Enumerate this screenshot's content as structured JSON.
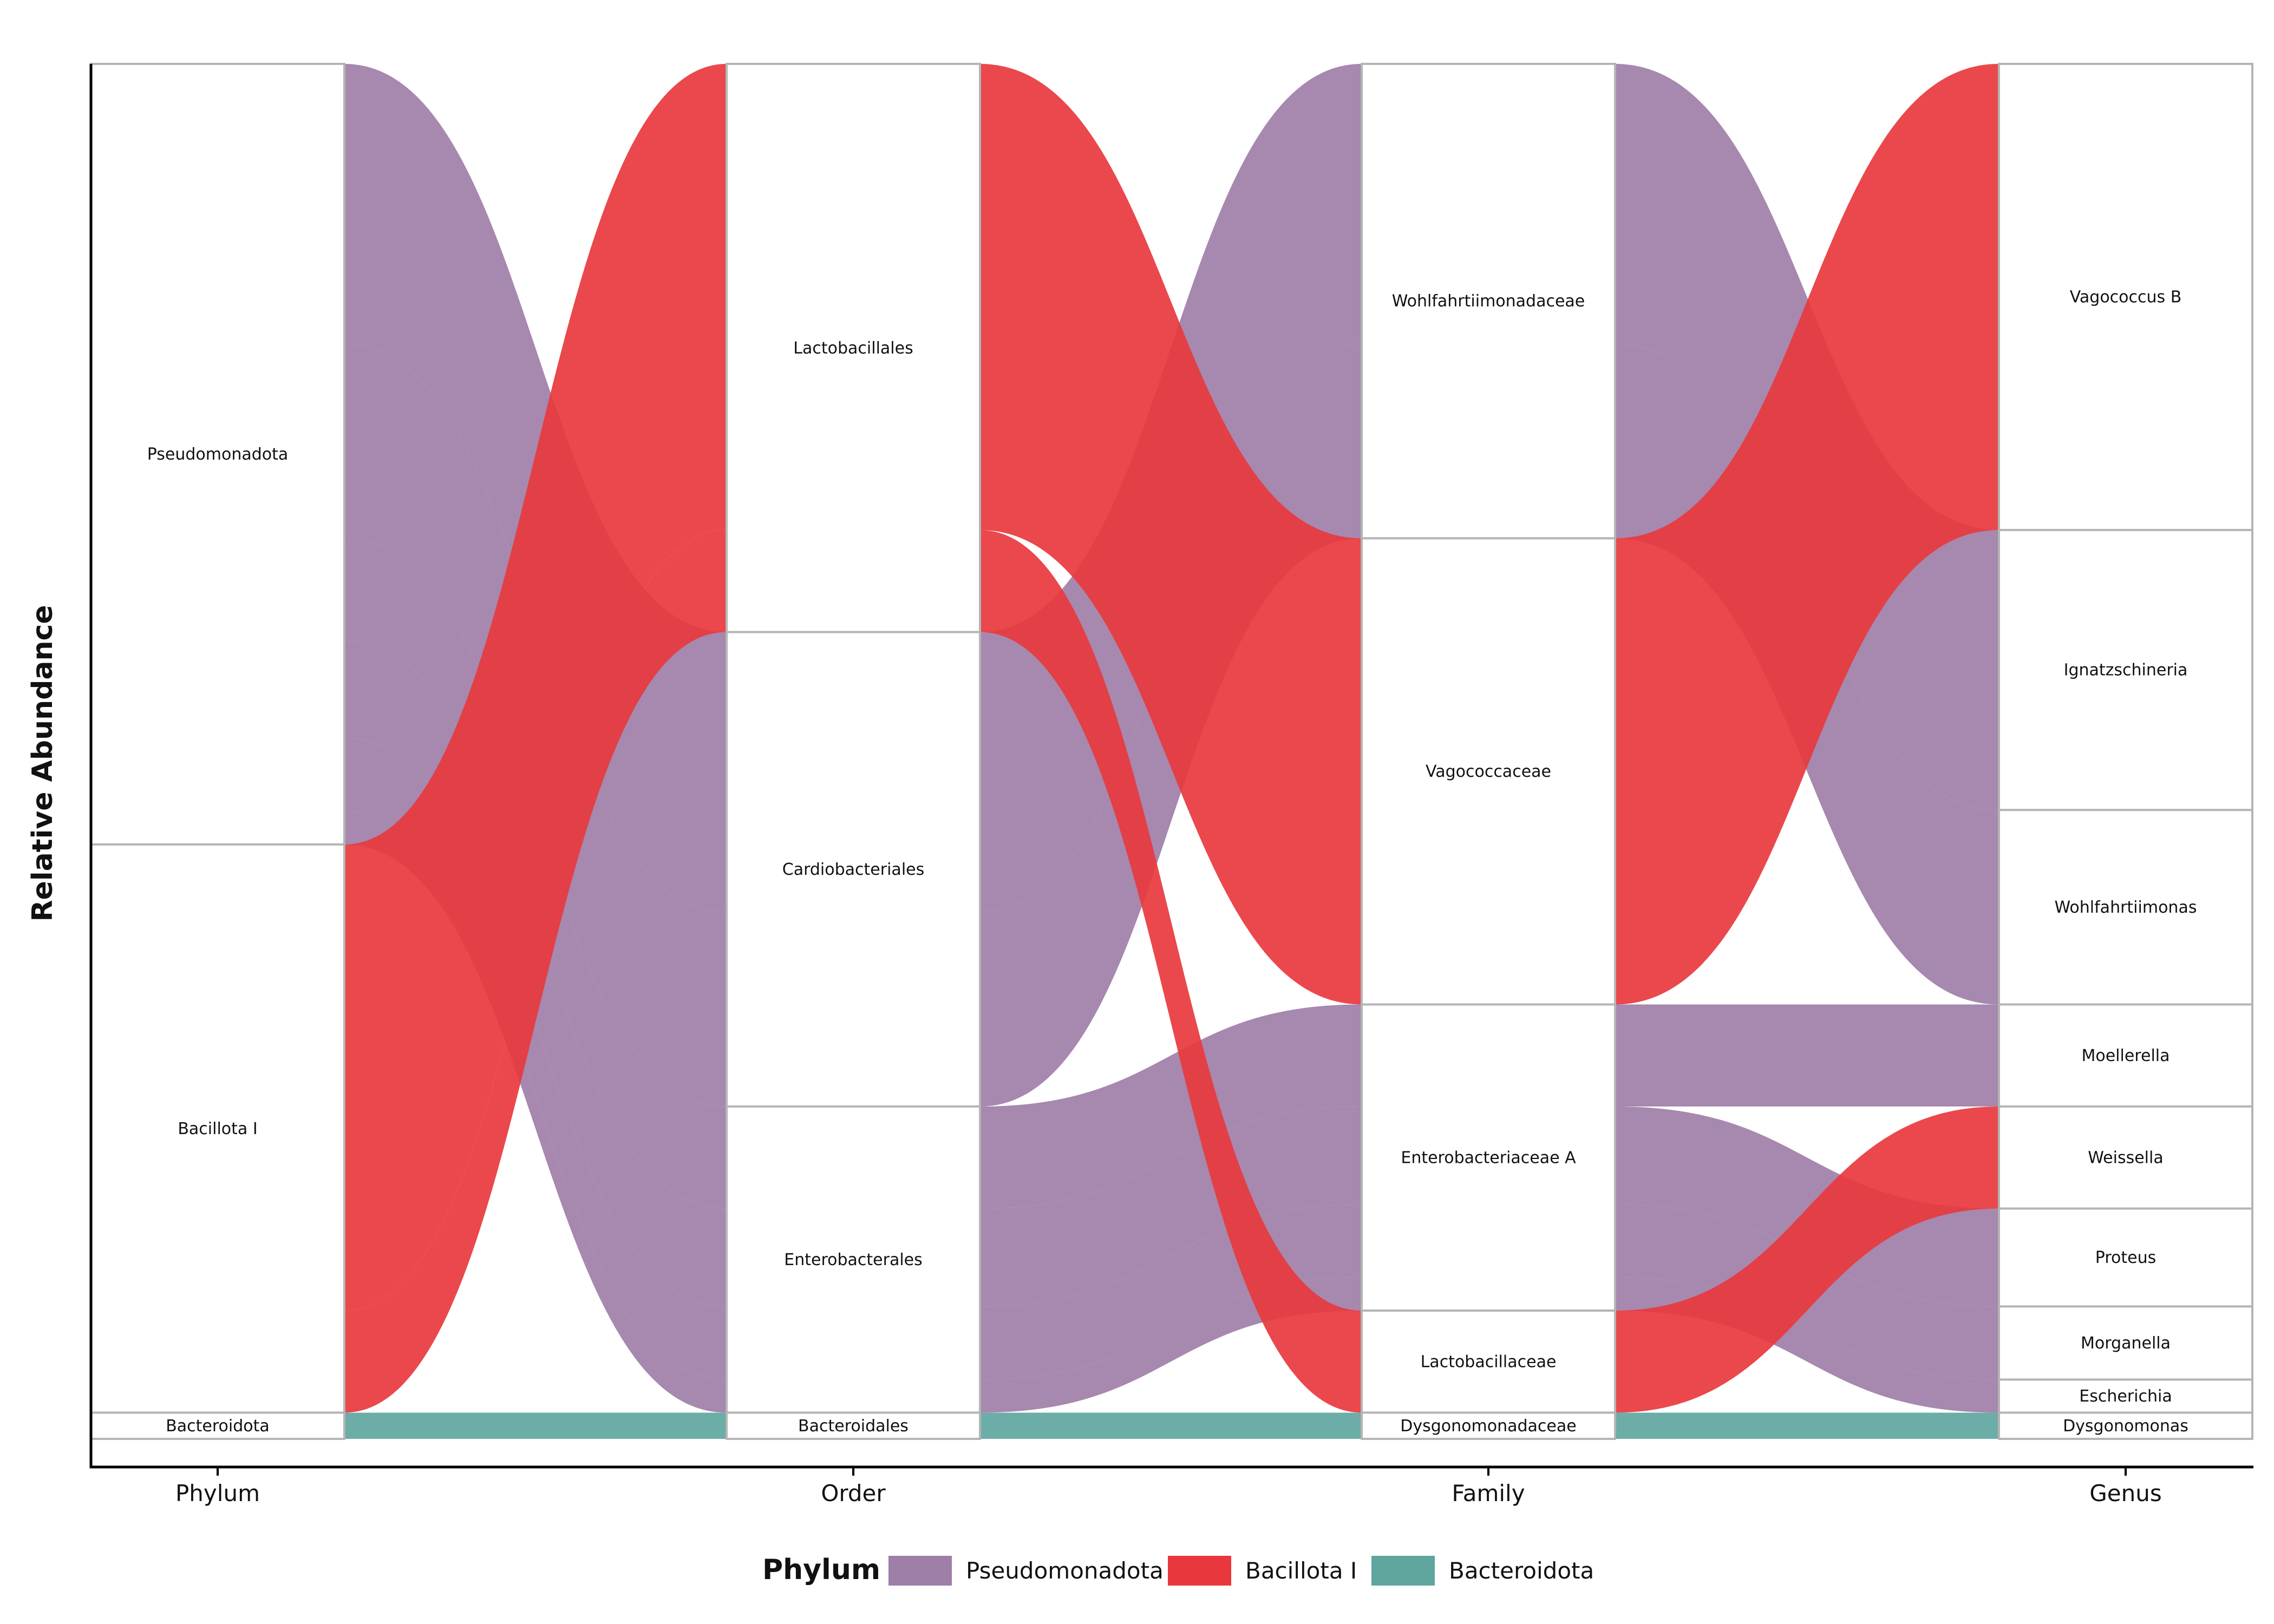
{
  "chart_data": {
    "type": "alluvial",
    "ylabel": "Relative Abundance",
    "axes": [
      "Phylum",
      "Order",
      "Family",
      "Genus"
    ],
    "colors": {
      "Pseudomonadota": "#9f7ea7",
      "Bacillota I": "#e8383d",
      "Bacteroidota": "#5fa69f"
    },
    "legend": {
      "title": "Phylum",
      "position": "bottom",
      "items": [
        "Pseudomonadota",
        "Bacillota I",
        "Bacteroidota"
      ]
    },
    "strata": [
      [
        "Pseudomonadota",
        "Bacillota I",
        "Bacteroidota"
      ],
      [
        "Lactobacillales",
        "Cardiobacteriales",
        "Enterobacterales",
        "Bacteroidales"
      ],
      [
        "Wohlfahrtiimonadaceae",
        "Vagococcaceae",
        "Enterobacteriaceae A",
        "Lactobacillaceae",
        "Dysgonomonadaceae"
      ],
      [
        "Vagococcus B",
        "Ignatzschineria",
        "Wohlfahrtiimonas",
        "Moellerella",
        "Weissella",
        "Proteus",
        "Morganella",
        "Escherichia",
        "Dysgonomonas"
      ]
    ],
    "flows": [
      {
        "phylum": "Pseudomonadota",
        "path": [
          "Pseudomonadota",
          "Cardiobacteriales",
          "Wohlfahrtiimonadaceae",
          "Ignatzschineria"
        ],
        "value": 0.203
      },
      {
        "phylum": "Pseudomonadota",
        "path": [
          "Pseudomonadota",
          "Cardiobacteriales",
          "Wohlfahrtiimonadaceae",
          "Wohlfahrtiimonas"
        ],
        "value": 0.141
      },
      {
        "phylum": "Pseudomonadota",
        "path": [
          "Pseudomonadota",
          "Enterobacterales",
          "Enterobacteriaceae A",
          "Moellerella"
        ],
        "value": 0.074
      },
      {
        "phylum": "Pseudomonadota",
        "path": [
          "Pseudomonadota",
          "Enterobacterales",
          "Enterobacteriaceae A",
          "Proteus"
        ],
        "value": 0.071
      },
      {
        "phylum": "Pseudomonadota",
        "path": [
          "Pseudomonadota",
          "Enterobacterales",
          "Enterobacteriaceae A",
          "Morganella"
        ],
        "value": 0.053
      },
      {
        "phylum": "Pseudomonadota",
        "path": [
          "Pseudomonadota",
          "Enterobacterales",
          "Enterobacteriaceae A",
          "Escherichia"
        ],
        "value": 0.024
      },
      {
        "phylum": "Bacillota I",
        "path": [
          "Bacillota I",
          "Lactobacillales",
          "Vagococcaceae",
          "Vagococcus B"
        ],
        "value": 0.338
      },
      {
        "phylum": "Bacillota I",
        "path": [
          "Bacillota I",
          "Lactobacillales",
          "Lactobacillaceae",
          "Weissella"
        ],
        "value": 0.074
      },
      {
        "phylum": "Bacteroidota",
        "path": [
          "Bacteroidota",
          "Bacteroidales",
          "Dysgonomonadaceae",
          "Dysgonomonas"
        ],
        "value": 0.019
      }
    ]
  }
}
